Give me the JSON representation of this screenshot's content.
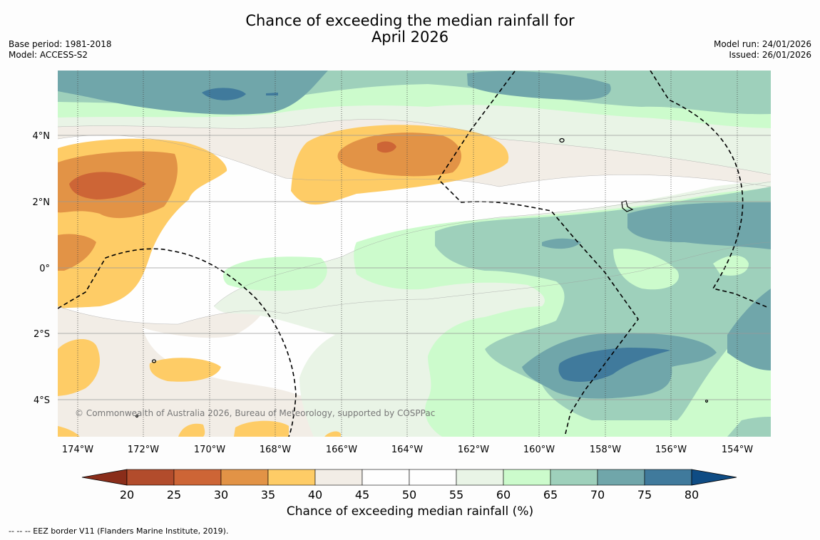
{
  "title": {
    "line1": "Chance of exceeding the median rainfall for",
    "line2": "April 2026"
  },
  "meta": {
    "base_period": "Base period: 1981-2018",
    "model": "Model: ACCESS-S2",
    "model_run": "Model run: 24/01/2026",
    "issued": "Issued: 26/01/2026"
  },
  "map": {
    "lat_labels": [
      "4°N",
      "2°N",
      "0°",
      "2°S",
      "4°S"
    ],
    "lon_labels": [
      "174°W",
      "172°W",
      "170°W",
      "168°W",
      "166°W",
      "164°W",
      "162°W",
      "160°W",
      "158°W",
      "156°W",
      "154°W"
    ],
    "copyright": "© Commonwealth of Australia 2026, Bureau of Meteorology, supported by COSPPac"
  },
  "colorbar": {
    "labels": [
      "20",
      "25",
      "30",
      "35",
      "40",
      "45",
      "50",
      "55",
      "60",
      "65",
      "70",
      "75",
      "80"
    ],
    "colors": [
      "#8a2d1a",
      "#b24c2c",
      "#cd6536",
      "#e29346",
      "#fecc66",
      "#f2ede6",
      "#fefefe",
      "#fefefe",
      "#e9f4e6",
      "#ccfbcc",
      "#9ed0bb",
      "#70a6aa",
      "#407a9c",
      "#0f4c84"
    ],
    "title": "Chance of exceeding median rainfall (%)"
  },
  "footer": "--  --  -- EEZ border V11 (Flanders Marine Institute, 2019)."
}
